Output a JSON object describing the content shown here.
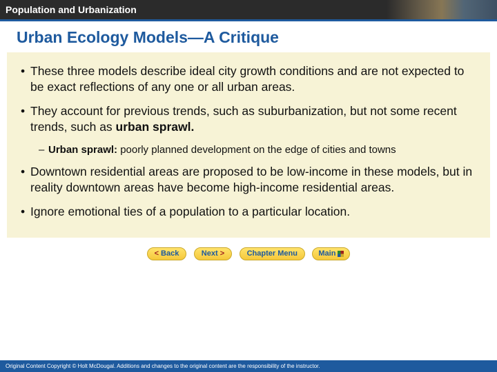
{
  "header": {
    "title": "Population and Urbanization"
  },
  "slide": {
    "title": "Urban Ecology Models—A Critique"
  },
  "content": {
    "b1": "These three models describe ideal city growth conditions and are not expected to be exact reflections of any one or all urban areas.",
    "b2a": "They account for previous trends, such as suburbanization, but not some recent trends, such as ",
    "b2b": "urban sprawl.",
    "s1a": "Urban sprawl:",
    "s1b": " poorly planned development on the edge of cities and towns",
    "b3": "Downtown residential areas are proposed to be low-income in these models, but in reality downtown areas have become high-income residential areas.",
    "b4": "Ignore emotional ties of a population to a particular location."
  },
  "nav": {
    "back": "Back",
    "next": "Next",
    "chapter": "Chapter Menu",
    "main": "Main"
  },
  "footer": {
    "text": "Original Content Copyright © Holt McDougal. Additions and changes to the original content are the responsibility of the instructor."
  },
  "colors": {
    "accent": "#1e5a9e",
    "panel": "#f7f3d6",
    "btnTop": "#ffe36b",
    "btnBot": "#f5c83a"
  }
}
